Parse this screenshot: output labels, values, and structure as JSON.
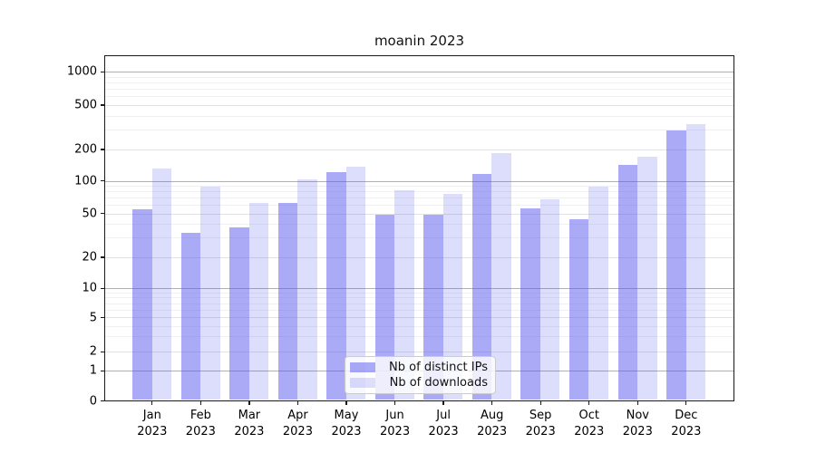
{
  "figure": {
    "title": "moanin 2023"
  },
  "chart_data": {
    "type": "bar",
    "title": "moanin 2023",
    "x_tick_months": [
      "Jan",
      "Feb",
      "Mar",
      "Apr",
      "May",
      "Jun",
      "Jul",
      "Aug",
      "Sep",
      "Oct",
      "Nov",
      "Dec"
    ],
    "x_tick_year": "2023",
    "y_scale": "symlog",
    "y_ticks": [
      0,
      1,
      2,
      5,
      10,
      20,
      50,
      100,
      200,
      500,
      1000
    ],
    "ylim": [
      0,
      1400
    ],
    "grid": "on",
    "legend_position": "lower center",
    "categories": [
      "Jan 2023",
      "Feb 2023",
      "Mar 2023",
      "Apr 2023",
      "May 2023",
      "Jun 2023",
      "Jul 2023",
      "Aug 2023",
      "Sep 2023",
      "Oct 2023",
      "Nov 2023",
      "Dec 2023"
    ],
    "series": [
      {
        "name": "Nb of distinct IPs",
        "color": "rgba(85,85,238,0.5)",
        "values": [
          55,
          33,
          37,
          62,
          122,
          49,
          49,
          117,
          56,
          44,
          141,
          295
        ]
      },
      {
        "name": "Nb of downloads",
        "color": "rgba(85,85,238,0.2)",
        "values": [
          130,
          88,
          62,
          103,
          136,
          82,
          76,
          182,
          67,
          89,
          170,
          335
        ]
      }
    ]
  },
  "colors": {
    "bar_dark_effective": "#aaaaf6",
    "bar_light_effective": "#dbdbf9",
    "grid_major": "#b0b0b0",
    "grid_minor": "#e8e8e8",
    "spine": "#1a1a1a"
  }
}
